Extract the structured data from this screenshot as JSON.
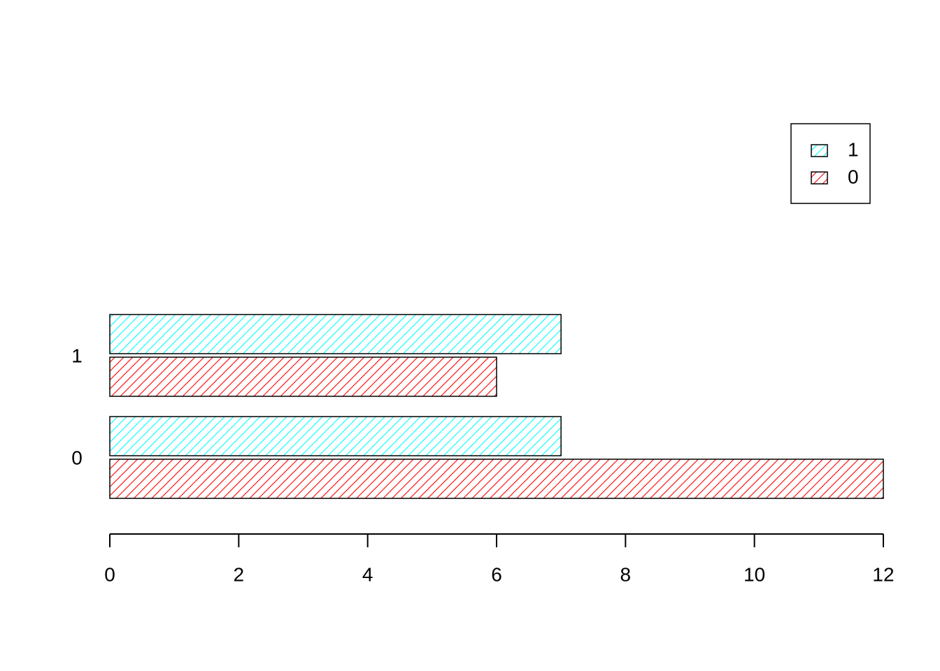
{
  "chart_data": {
    "type": "bar",
    "orientation": "horizontal",
    "categories": [
      "0",
      "1"
    ],
    "series": [
      {
        "name": "0",
        "color": "#ff0000",
        "values": [
          12,
          6
        ]
      },
      {
        "name": "1",
        "color": "#00ffff",
        "values": [
          7,
          7
        ]
      }
    ],
    "xlim": [
      0,
      12
    ],
    "xticks": [
      0,
      2,
      4,
      6,
      8,
      10,
      12
    ],
    "fill_pattern": "hatch",
    "legend": "topright"
  }
}
